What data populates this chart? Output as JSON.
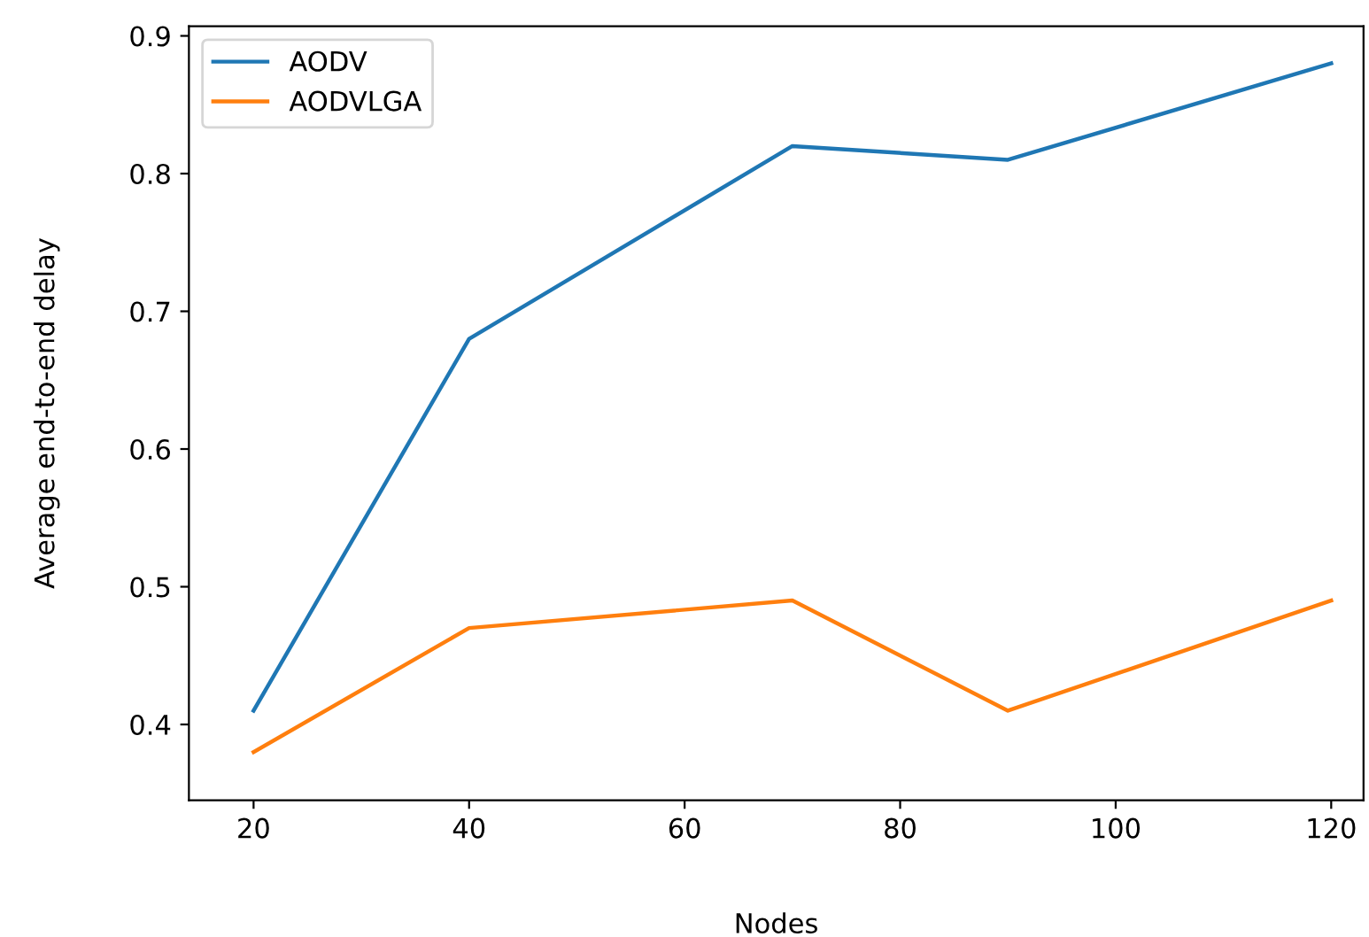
{
  "chart_data": {
    "type": "line",
    "xlabel": "Nodes",
    "ylabel": "Average end-to-end delay",
    "x": [
      20,
      40,
      70,
      90,
      120
    ],
    "series": [
      {
        "name": "AODV",
        "color": "#1f77b4",
        "values": [
          0.41,
          0.68,
          0.82,
          0.81,
          0.88
        ]
      },
      {
        "name": "AODVLGA",
        "color": "#ff7f0e",
        "values": [
          0.38,
          0.47,
          0.49,
          0.41,
          0.49
        ]
      }
    ],
    "xlim": [
      14,
      123
    ],
    "ylim": [
      0.345,
      0.907
    ],
    "xticks": [
      20,
      40,
      60,
      80,
      100,
      120
    ],
    "yticks": [
      0.4,
      0.5,
      0.6,
      0.7,
      0.8,
      0.9
    ],
    "grid": false,
    "legend": "top left",
    "marker": "none",
    "line_style": "solid"
  }
}
